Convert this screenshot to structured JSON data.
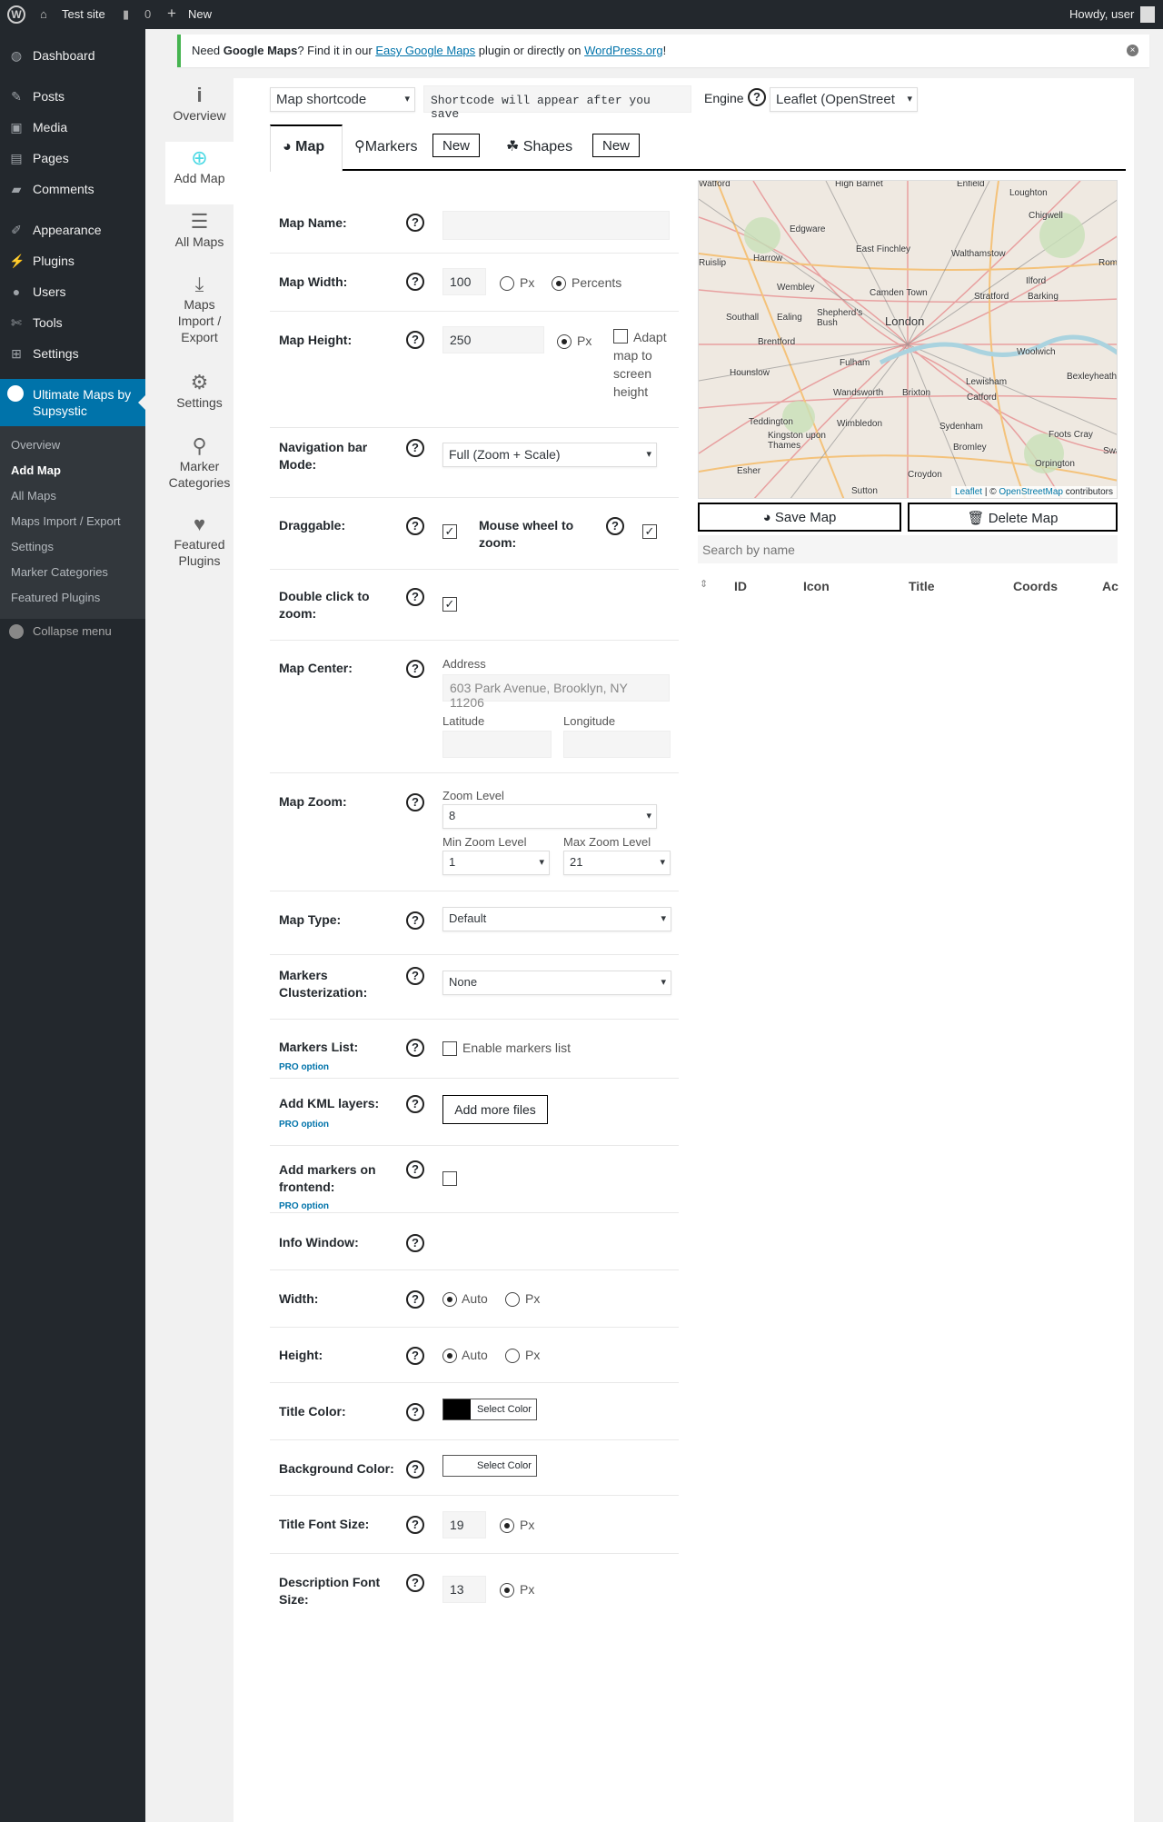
{
  "adminbar": {
    "site": "Test site",
    "comments": "0",
    "new": "New",
    "howdy": "Howdy, user"
  },
  "sidebar": {
    "items": [
      "Dashboard",
      "Posts",
      "Media",
      "Pages",
      "Comments",
      "Appearance",
      "Plugins",
      "Users",
      "Tools",
      "Settings"
    ],
    "active": "Ultimate Maps by Supsystic",
    "submenu": [
      "Overview",
      "Add Map",
      "All Maps",
      "Maps Import / Export",
      "Settings",
      "Marker Categories",
      "Featured Plugins"
    ],
    "collapse": "Collapse menu"
  },
  "notice": {
    "pre": "Need ",
    "bold": "Google Maps",
    "mid": "? Find it in our ",
    "link1": "Easy Google Maps",
    "mid2": " plugin or directly on ",
    "link2": "WordPress.org",
    "post": "!"
  },
  "plugin_nav": [
    "Overview",
    "Add Map",
    "All Maps",
    "Maps Import / Export",
    "Settings",
    "Marker Categories",
    "Featured Plugins"
  ],
  "toolbar": {
    "shortcode_select": "Map shortcode",
    "shortcode_text": "Shortcode will appear after you save",
    "engine_label": "Engine",
    "engine_value": "Leaflet (OpenStreet"
  },
  "tabs": {
    "map": "Map",
    "markers": "Markers",
    "shapes": "Shapes",
    "new": "New"
  },
  "form": {
    "map_name": "Map Name:",
    "map_width": "Map Width:",
    "width_value": "100",
    "px": "Px",
    "percents": "Percents",
    "map_height": "Map Height:",
    "height_value": "250",
    "adapt": "Adapt map to screen height",
    "nav_mode": "Navigation bar Mode:",
    "nav_value": "Full (Zoom + Scale)",
    "draggable": "Draggable:",
    "mousewheel": "Mouse wheel to zoom:",
    "dblclick": "Double click to zoom:",
    "center": "Map Center:",
    "address": "Address",
    "address_placeholder": "603 Park Avenue, Brooklyn, NY 11206",
    "latitude": "Latitude",
    "longitude": "Longitude",
    "zoom": "Map Zoom:",
    "zoom_level": "Zoom Level",
    "zoom_value": "8",
    "min_zoom": "Min Zoom Level",
    "min_value": "1",
    "max_zoom": "Max Zoom Level",
    "max_value": "21",
    "type": "Map Type:",
    "type_value": "Default",
    "cluster": "Markers Clusterization:",
    "cluster_value": "None",
    "markers_list": "Markers List:",
    "enable_list": "Enable markers list",
    "pro": "PRO option",
    "kml": "Add KML layers:",
    "add_files": "Add more files",
    "frontend": "Add markers on frontend:",
    "info": "Info Window:",
    "iw_width": "Width:",
    "iw_height": "Height:",
    "auto": "Auto",
    "title_color": "Title Color:",
    "bg_color": "Background Color:",
    "select_color": "Select Color",
    "title_color_value": "#000000",
    "bg_color_value": "#ffffff",
    "title_size": "Title Font Size:",
    "title_size_value": "19",
    "desc_size": "Description Font Size:",
    "desc_size_value": "13"
  },
  "map": {
    "places": [
      "Watford",
      "High Barnet",
      "Enfield",
      "Loughton",
      "Chigwell",
      "Edgware",
      "East Finchley",
      "Walthamstow",
      "Romford",
      "Ruislip",
      "Harrow",
      "Ilford",
      "Wembley",
      "Camden Town",
      "Stratford",
      "Barking",
      "Southall",
      "Ealing",
      "Shepherd's Bush",
      "London",
      "Brentford",
      "Woolwich",
      "Fulham",
      "Hounslow",
      "Bexleyheath",
      "Lewisham",
      "Wandsworth",
      "Brixton",
      "Catford",
      "Teddington",
      "Wimbledon",
      "Sydenham",
      "Kingston upon Thames",
      "Foots Cray",
      "Bromley",
      "Esher",
      "Orpington",
      "Croydon",
      "Sutton",
      "Swanley"
    ],
    "attribution_leaflet": "Leaflet",
    "attribution_sep": " | © ",
    "attribution_osm": "OpenStreetMap",
    "attribution_post": " contributors"
  },
  "side": {
    "save": "Save Map",
    "delete": "Delete Map",
    "search_placeholder": "Search by name",
    "columns": [
      "ID",
      "Icon",
      "Title",
      "Coords",
      "Ac"
    ]
  }
}
